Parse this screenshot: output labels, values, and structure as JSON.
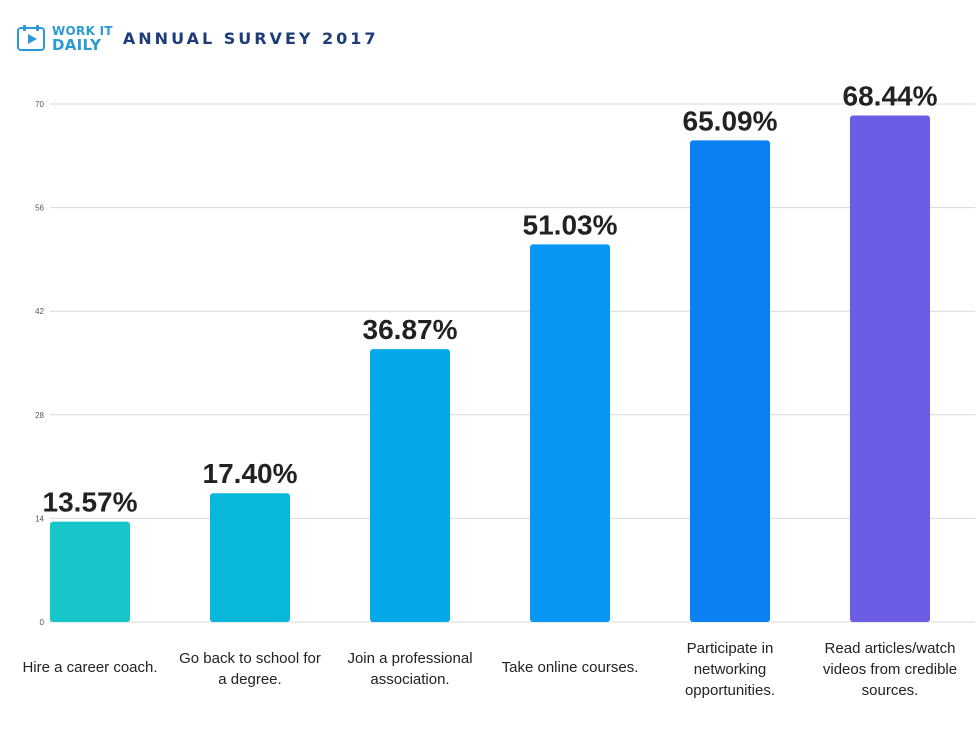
{
  "header": {
    "logo_line1": "WORK IT",
    "logo_line2": "DAILY",
    "title": "ANNUAL SURVEY 2017",
    "brand_color": "#2a9bd6",
    "title_color": "#1d3c78"
  },
  "chart_data": {
    "type": "bar",
    "ylim": [
      0,
      70
    ],
    "yticks": [
      0,
      14,
      28,
      42,
      56,
      70
    ],
    "grid": true,
    "categories": [
      [
        "Hire a career coach."
      ],
      [
        "Go back to school for",
        "a degree."
      ],
      [
        "Join a professional",
        "association."
      ],
      [
        "Take online courses."
      ],
      [
        "Participate in",
        "networking",
        "opportunities."
      ],
      [
        "Read articles/watch",
        "videos from credible",
        "sources."
      ]
    ],
    "values": [
      13.57,
      17.4,
      36.87,
      51.03,
      65.09,
      68.44
    ],
    "data_labels": [
      "13.57%",
      "17.40%",
      "36.87%",
      "51.03%",
      "65.09%",
      "68.44%"
    ],
    "colors": [
      "#16c6c8",
      "#08b8db",
      "#04a9ea",
      "#0897f5",
      "#0a80f2",
      "#6b5de4"
    ]
  }
}
